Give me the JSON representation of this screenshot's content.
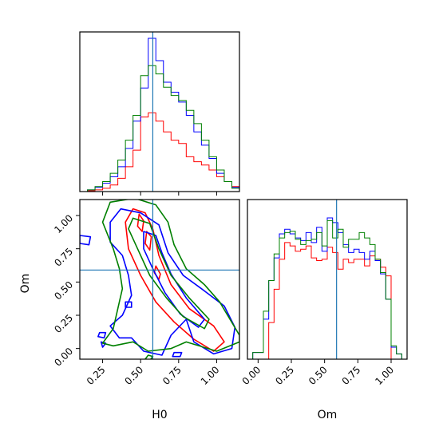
{
  "chart_data": {
    "type": "corner",
    "parameters": [
      "H0",
      "Om"
    ],
    "truths": {
      "H0": 0.58,
      "Om": 0.59
    },
    "truth_color": "#1f77b4",
    "series_colors": [
      "#ff0000",
      "#0000ff",
      "#008000"
    ],
    "ranges": {
      "H0": [
        0.1,
        1.15
      ],
      "Om": [
        -0.08,
        1.12
      ]
    },
    "ticks": {
      "H0": [
        "0.25",
        "0.50",
        "0.75",
        "1.00"
      ],
      "Om_y": [
        "1.00",
        "0.75",
        "0.50",
        "0.25",
        "0.00"
      ],
      "Om_x": [
        "0.00",
        "0.25",
        "0.50",
        "0.75",
        "1.00"
      ]
    },
    "tick_values": {
      "H0": [
        0.25,
        0.5,
        0.75,
        1.0
      ],
      "Om_y": [
        1.0,
        0.75,
        0.5,
        0.25,
        0.0
      ],
      "Om_x": [
        0.0,
        0.25,
        0.5,
        0.75,
        1.0
      ]
    },
    "axis_labels": {
      "x_bottom_left": "H0",
      "x_bottom_right": "Om",
      "y_left": "Om"
    },
    "hist_H0": {
      "edges_start": 0.1,
      "bin_width": 0.05,
      "ymax": 185,
      "series": [
        {
          "color": "#ff0000",
          "counts": [
            0,
            1,
            2,
            4,
            8,
            16,
            30,
            50,
            90,
            95,
            85,
            72,
            62,
            58,
            42,
            36,
            32,
            26,
            18,
            12,
            6,
            2,
            1,
            0
          ]
        },
        {
          "color": "#0000ff",
          "counts": [
            0,
            2,
            5,
            10,
            18,
            30,
            52,
            85,
            125,
            185,
            158,
            132,
            120,
            108,
            92,
            72,
            56,
            40,
            22,
            12,
            5,
            2,
            0,
            0
          ]
        },
        {
          "color": "#008000",
          "counts": [
            0,
            2,
            6,
            12,
            22,
            38,
            62,
            92,
            140,
            152,
            142,
            126,
            116,
            110,
            98,
            82,
            62,
            42,
            26,
            12,
            4,
            2,
            0,
            0
          ]
        }
      ]
    },
    "hist_Om": {
      "edges_start": -0.08,
      "bin_width": 0.04,
      "ymax": 230,
      "series": [
        {
          "color": "#ff0000",
          "counts": [
            0,
            0,
            0,
            0,
            55,
            105,
            150,
            175,
            170,
            162,
            165,
            170,
            152,
            148,
            150,
            168,
            160,
            135,
            150,
            145,
            150,
            150,
            140,
            155,
            150,
            138,
            125,
            0,
            0,
            0
          ]
        },
        {
          "color": "#0000ff",
          "counts": [
            0,
            10,
            10,
            60,
            118,
            152,
            188,
            195,
            188,
            182,
            178,
            190,
            175,
            198,
            162,
            212,
            205,
            190,
            172,
            160,
            165,
            160,
            150,
            162,
            148,
            128,
            90,
            18,
            8,
            0
          ]
        },
        {
          "color": "#008000",
          "counts": [
            0,
            10,
            10,
            72,
            118,
            158,
            182,
            190,
            192,
            180,
            172,
            178,
            180,
            190,
            170,
            208,
            182,
            195,
            168,
            180,
            180,
            190,
            182,
            172,
            150,
            130,
            90,
            20,
            8,
            0
          ]
        }
      ]
    },
    "contours": [
      {
        "color": "#ff0000",
        "levels": [
          [
            [
              0.45,
              1.05
            ],
            [
              0.53,
              1.02
            ],
            [
              0.58,
              0.9
            ],
            [
              0.62,
              0.7
            ],
            [
              0.7,
              0.48
            ],
            [
              0.82,
              0.3
            ],
            [
              0.98,
              0.17
            ],
            [
              1.05,
              0.05
            ],
            [
              0.98,
              -0.02
            ],
            [
              0.85,
              0.07
            ],
            [
              0.72,
              0.2
            ],
            [
              0.6,
              0.35
            ],
            [
              0.5,
              0.55
            ],
            [
              0.42,
              0.75
            ],
            [
              0.4,
              0.95
            ]
          ],
          [
            [
              0.49,
              1.01
            ],
            [
              0.52,
              0.96
            ],
            [
              0.51,
              0.88
            ],
            [
              0.48,
              0.92
            ]
          ],
          [
            [
              0.54,
              0.88
            ],
            [
              0.57,
              0.84
            ],
            [
              0.56,
              0.74
            ],
            [
              0.53,
              0.79
            ]
          ],
          [
            [
              0.6,
              0.62
            ],
            [
              0.63,
              0.56
            ],
            [
              0.62,
              0.52
            ],
            [
              0.59,
              0.57
            ]
          ]
        ]
      },
      {
        "color": "#0000ff",
        "levels": [
          [
            [
              0.37,
              1.05
            ],
            [
              0.5,
              1.02
            ],
            [
              0.62,
              0.93
            ],
            [
              0.68,
              0.72
            ],
            [
              0.78,
              0.55
            ],
            [
              0.9,
              0.45
            ],
            [
              1.05,
              0.32
            ],
            [
              1.12,
              0.16
            ],
            [
              1.1,
              0.0
            ],
            [
              0.98,
              -0.04
            ],
            [
              0.85,
              0.05
            ],
            [
              0.8,
              0.22
            ],
            [
              0.7,
              0.1
            ],
            [
              0.64,
              -0.05
            ],
            [
              0.52,
              -0.02
            ],
            [
              0.44,
              0.08
            ],
            [
              0.36,
              0.08
            ],
            [
              0.3,
              0.17
            ],
            [
              0.38,
              0.25
            ],
            [
              0.44,
              0.4
            ],
            [
              0.42,
              0.55
            ],
            [
              0.38,
              0.7
            ],
            [
              0.3,
              0.8
            ],
            [
              0.3,
              0.95
            ]
          ],
          [
            [
              0.52,
              0.88
            ],
            [
              0.6,
              0.85
            ],
            [
              0.64,
              0.72
            ],
            [
              0.7,
              0.56
            ],
            [
              0.8,
              0.38
            ],
            [
              0.92,
              0.22
            ],
            [
              0.88,
              0.16
            ],
            [
              0.76,
              0.26
            ],
            [
              0.66,
              0.42
            ],
            [
              0.58,
              0.6
            ],
            [
              0.52,
              0.75
            ]
          ],
          [
            [
              0.1,
              0.85
            ],
            [
              0.17,
              0.84
            ],
            [
              0.16,
              0.78
            ],
            [
              0.1,
              0.79
            ]
          ],
          [
            [
              0.23,
              0.12
            ],
            [
              0.27,
              0.12
            ],
            [
              0.26,
              0.08
            ],
            [
              0.22,
              0.09
            ]
          ],
          [
            [
              0.24,
              0.05
            ],
            [
              0.27,
              0.04
            ],
            [
              0.25,
              0.01
            ]
          ],
          [
            [
              0.72,
              -0.03
            ],
            [
              0.77,
              -0.03
            ],
            [
              0.76,
              -0.06
            ],
            [
              0.71,
              -0.06
            ]
          ],
          [
            [
              0.4,
              0.35
            ],
            [
              0.44,
              0.35
            ],
            [
              0.44,
              0.31
            ],
            [
              0.4,
              0.31
            ]
          ]
        ]
      },
      {
        "color": "#008000",
        "levels": [
          [
            [
              0.3,
              1.1
            ],
            [
              0.46,
              1.13
            ],
            [
              0.6,
              1.08
            ],
            [
              0.68,
              0.95
            ],
            [
              0.72,
              0.78
            ],
            [
              0.8,
              0.6
            ],
            [
              0.92,
              0.48
            ],
            [
              1.02,
              0.35
            ],
            [
              1.15,
              0.1
            ],
            [
              1.15,
              0.05
            ],
            [
              1.0,
              -0.02
            ],
            [
              0.8,
              0.05
            ],
            [
              0.7,
              0.0
            ],
            [
              0.55,
              -0.02
            ],
            [
              0.45,
              0.05
            ],
            [
              0.32,
              0.02
            ],
            [
              0.25,
              0.04
            ],
            [
              0.32,
              0.15
            ],
            [
              0.35,
              0.3
            ],
            [
              0.38,
              0.45
            ],
            [
              0.36,
              0.6
            ],
            [
              0.32,
              0.75
            ],
            [
              0.25,
              0.95
            ]
          ],
          [
            [
              0.45,
              0.98
            ],
            [
              0.56,
              0.94
            ],
            [
              0.62,
              0.75
            ],
            [
              0.7,
              0.55
            ],
            [
              0.82,
              0.38
            ],
            [
              0.95,
              0.22
            ],
            [
              0.92,
              0.15
            ],
            [
              0.78,
              0.24
            ],
            [
              0.67,
              0.38
            ],
            [
              0.56,
              0.55
            ],
            [
              0.48,
              0.75
            ],
            [
              0.42,
              0.9
            ]
          ],
          [
            [
              0.55,
              -0.05
            ],
            [
              0.58,
              -0.06
            ],
            [
              0.56,
              -0.09
            ],
            [
              0.53,
              -0.08
            ]
          ]
        ]
      }
    ]
  }
}
